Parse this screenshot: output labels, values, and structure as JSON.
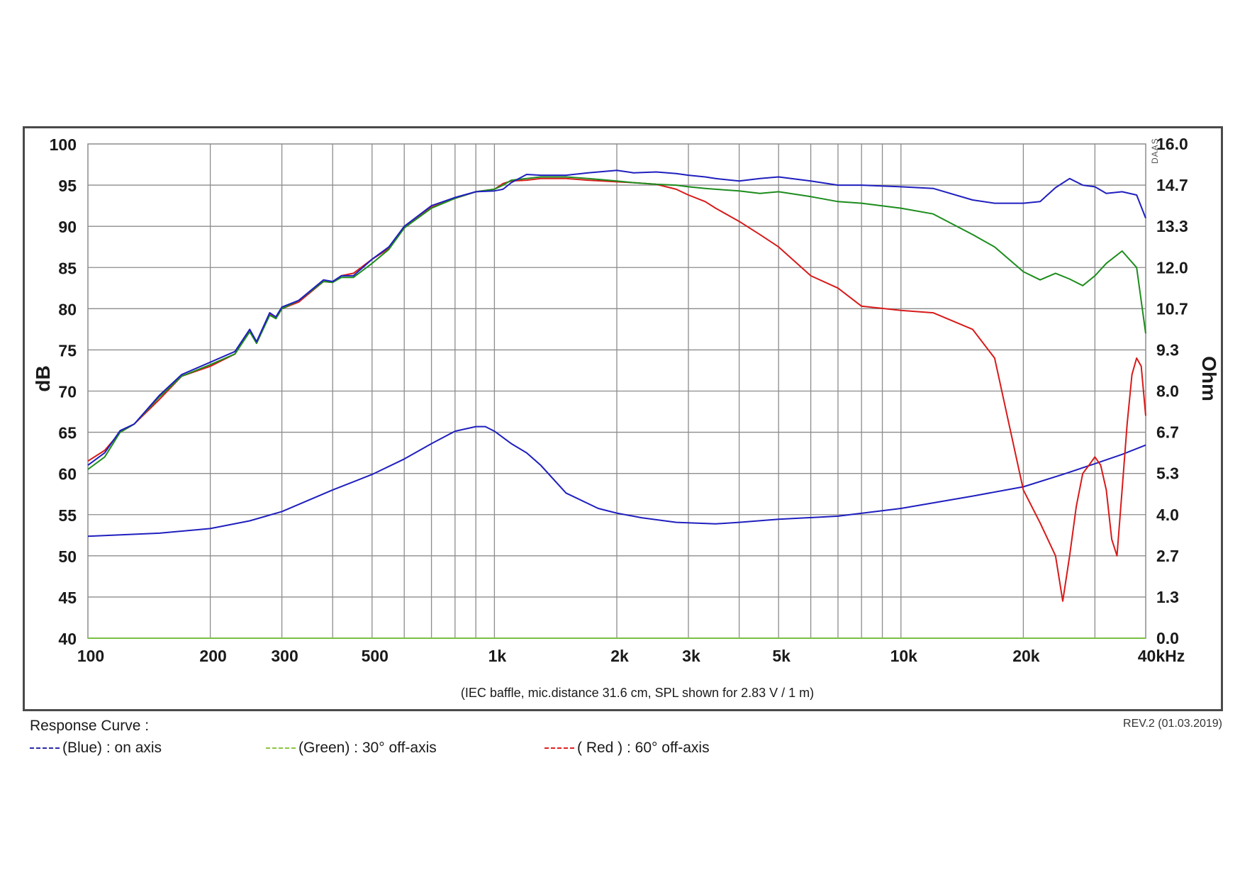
{
  "chart_data": {
    "type": "line",
    "note": "(IEC baffle, mic.distance 31.6 cm, SPL shown for 2.83 V / 1 m)",
    "ylabel": "dB",
    "y2label": "Ohm",
    "watermark": "DAAS",
    "xscale": "log",
    "xlim": [
      100,
      40000
    ],
    "ylim": [
      40,
      100
    ],
    "y2lim": [
      0,
      16
    ],
    "x_ticks": [
      {
        "v": 100,
        "label": "100"
      },
      {
        "v": 200,
        "label": "200"
      },
      {
        "v": 300,
        "label": "300"
      },
      {
        "v": 500,
        "label": "500"
      },
      {
        "v": 1000,
        "label": "1k"
      },
      {
        "v": 2000,
        "label": "2k"
      },
      {
        "v": 3000,
        "label": "3k"
      },
      {
        "v": 5000,
        "label": "5k"
      },
      {
        "v": 10000,
        "label": "10k"
      },
      {
        "v": 20000,
        "label": "20k"
      },
      {
        "v": 40000,
        "label": "40kHz"
      }
    ],
    "y_ticks": [
      "100",
      "95",
      "90",
      "85",
      "80",
      "75",
      "70",
      "65",
      "60",
      "55",
      "50",
      "45",
      "40"
    ],
    "y2_ticks": [
      "16.0",
      "14.7",
      "13.3",
      "12.0",
      "10.7",
      "9.3",
      "8.0",
      "6.7",
      "5.3",
      "4.0",
      "2.7",
      "1.3",
      "0.0"
    ],
    "grid": true,
    "series": [
      {
        "name": "on axis",
        "color": "#1f1fbf",
        "axis": "y",
        "x": [
          100,
          110,
          120,
          130,
          150,
          170,
          200,
          230,
          250,
          260,
          280,
          290,
          300,
          330,
          380,
          400,
          420,
          450,
          500,
          550,
          600,
          700,
          800,
          900,
          1000,
          1050,
          1100,
          1200,
          1300,
          1500,
          1700,
          2000,
          2200,
          2500,
          2800,
          3000,
          3300,
          3500,
          4000,
          4500,
          5000,
          6000,
          7000,
          8000,
          10000,
          12000,
          15000,
          17000,
          20000,
          22000,
          24000,
          26000,
          28000,
          30000,
          32000,
          35000,
          38000,
          40000
        ],
        "y": [
          61,
          62.5,
          65.2,
          66,
          69.5,
          72,
          73.5,
          74.8,
          77.5,
          76,
          79.5,
          79,
          80.2,
          81,
          83.5,
          83.3,
          84,
          84,
          86,
          87.5,
          90,
          92.5,
          93.5,
          94.2,
          94.3,
          94.5,
          95.3,
          96.3,
          96.2,
          96.2,
          96.5,
          96.8,
          96.5,
          96.6,
          96.4,
          96.2,
          96,
          95.8,
          95.5,
          95.8,
          96,
          95.5,
          95,
          95,
          94.8,
          94.6,
          93.2,
          92.8,
          92.8,
          93,
          94.7,
          95.8,
          95,
          94.8,
          94,
          94.2,
          93.8,
          91
        ]
      },
      {
        "name": "30° off-axis",
        "color": "#1c8c1c",
        "axis": "y",
        "x": [
          100,
          110,
          120,
          130,
          150,
          170,
          200,
          230,
          250,
          260,
          280,
          290,
          300,
          330,
          380,
          400,
          420,
          450,
          500,
          550,
          600,
          700,
          800,
          900,
          1000,
          1050,
          1100,
          1200,
          1300,
          1500,
          1700,
          2000,
          2200,
          2500,
          2800,
          3000,
          3300,
          3500,
          4000,
          4500,
          5000,
          6000,
          7000,
          8000,
          10000,
          12000,
          15000,
          17000,
          20000,
          22000,
          24000,
          26000,
          28000,
          30000,
          32000,
          35000,
          38000,
          40000
        ],
        "y": [
          60.5,
          62,
          65,
          66,
          69.3,
          71.8,
          73.2,
          74.5,
          77.2,
          75.8,
          79.2,
          78.8,
          80,
          81,
          83.3,
          83.2,
          83.8,
          83.8,
          85.5,
          87.2,
          89.8,
          92.2,
          93.4,
          94.2,
          94.5,
          95,
          95.6,
          95.8,
          96,
          96,
          95.8,
          95.5,
          95.3,
          95.1,
          95,
          94.8,
          94.6,
          94.5,
          94.3,
          94,
          94.2,
          93.6,
          93,
          92.8,
          92.2,
          91.5,
          89,
          87.5,
          84.5,
          83.5,
          84.3,
          83.6,
          82.8,
          84,
          85.5,
          87,
          85,
          77
        ]
      },
      {
        "name": "60° off-axis",
        "color": "#d81a1a",
        "axis": "y",
        "x": [
          100,
          110,
          120,
          130,
          150,
          170,
          200,
          230,
          250,
          260,
          280,
          290,
          300,
          330,
          380,
          400,
          420,
          450,
          500,
          550,
          600,
          700,
          800,
          900,
          1000,
          1050,
          1100,
          1200,
          1300,
          1500,
          1700,
          2000,
          2200,
          2500,
          2800,
          3000,
          3300,
          3500,
          4000,
          4500,
          5000,
          6000,
          7000,
          8000,
          10000,
          12000,
          15000,
          17000,
          20000,
          22000,
          24000,
          25000,
          26000,
          27000,
          28000,
          29000,
          30000,
          31000,
          32000,
          33000,
          34000,
          35000,
          36000,
          37000,
          38000,
          39000,
          40000
        ],
        "y": [
          61.5,
          62.8,
          65,
          66,
          69,
          71.8,
          73,
          74.5,
          77.3,
          75.8,
          79.3,
          78.8,
          80,
          80.8,
          83.3,
          83.2,
          84,
          84.3,
          86,
          87.3,
          89.8,
          92.3,
          93.4,
          94.2,
          94.5,
          95.2,
          95.5,
          95.6,
          95.8,
          95.8,
          95.6,
          95.4,
          95.3,
          95.1,
          94.5,
          93.8,
          93,
          92.2,
          90.6,
          89,
          87.5,
          84,
          82.5,
          80.3,
          79.8,
          79.5,
          77.5,
          74,
          58,
          54,
          50,
          44.5,
          50,
          56,
          60,
          61,
          62,
          61,
          58,
          52,
          50,
          58,
          66,
          72,
          74,
          73,
          67
        ]
      },
      {
        "name": "Impedance",
        "color": "#1f1fbf",
        "axis": "y2",
        "x": [
          100,
          150,
          200,
          250,
          300,
          400,
          500,
          600,
          700,
          800,
          900,
          950,
          1000,
          1100,
          1200,
          1300,
          1500,
          1800,
          2000,
          2300,
          2800,
          3500,
          4000,
          5000,
          7000,
          10000,
          15000,
          20000,
          25000,
          30000,
          35000,
          40000
        ],
        "y": [
          3.3,
          3.4,
          3.55,
          3.8,
          4.1,
          4.8,
          5.3,
          5.8,
          6.3,
          6.7,
          6.85,
          6.85,
          6.7,
          6.3,
          6.0,
          5.6,
          4.7,
          4.2,
          4.05,
          3.9,
          3.75,
          3.7,
          3.75,
          3.85,
          3.95,
          4.2,
          4.6,
          4.9,
          5.3,
          5.65,
          5.95,
          6.25
        ]
      },
      {
        "name": "baseline",
        "color": "#7ac143",
        "axis": "y",
        "x": [
          100,
          40000
        ],
        "y": [
          40,
          40
        ]
      }
    ]
  },
  "legend": {
    "title": "Response Curve :",
    "items": [
      {
        "text": "(Blue)  : on axis",
        "color": "#2a2aa8"
      },
      {
        "text": "(Green) : 30° off-axis",
        "color": "#8cc63f"
      },
      {
        "text": "( Red ) : 60° off-axis",
        "color": "#e02020"
      }
    ],
    "revision": "REV.2 (01.03.2019)"
  }
}
